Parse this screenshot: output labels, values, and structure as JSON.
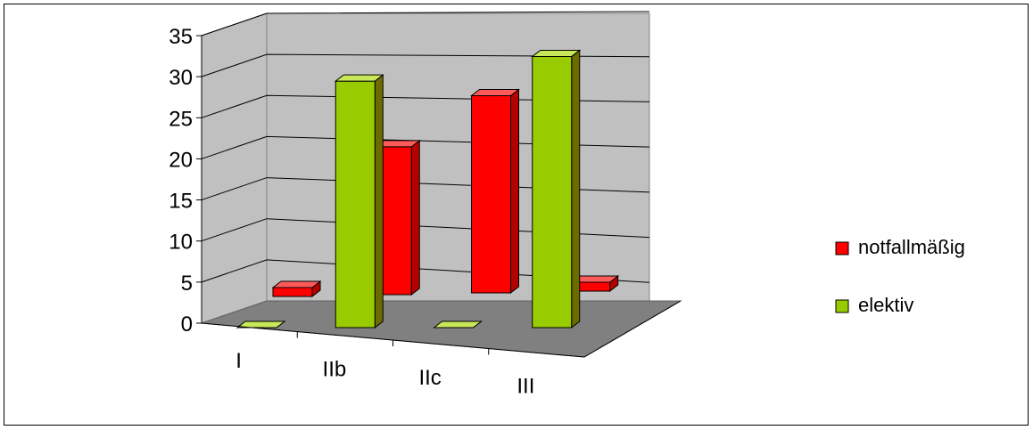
{
  "chart_data": {
    "type": "bar",
    "categories": [
      "I",
      "IIb",
      "IIc",
      "III"
    ],
    "series": [
      {
        "name": "notfallmäßig",
        "values": [
          1,
          18,
          24,
          1
        ],
        "color": "#ff0000",
        "color_side": "#b30000",
        "color_top": "#ff5a5a"
      },
      {
        "name": "elektiv",
        "values": [
          0,
          30,
          0,
          33
        ],
        "color": "#99cc00",
        "color_side": "#6b6b00",
        "color_top": "#c8e85a"
      }
    ],
    "yticks": [
      0,
      5,
      10,
      15,
      20,
      25,
      30,
      35
    ],
    "ylim": [
      0,
      35
    ],
    "legend_position": "right",
    "grid": true
  }
}
